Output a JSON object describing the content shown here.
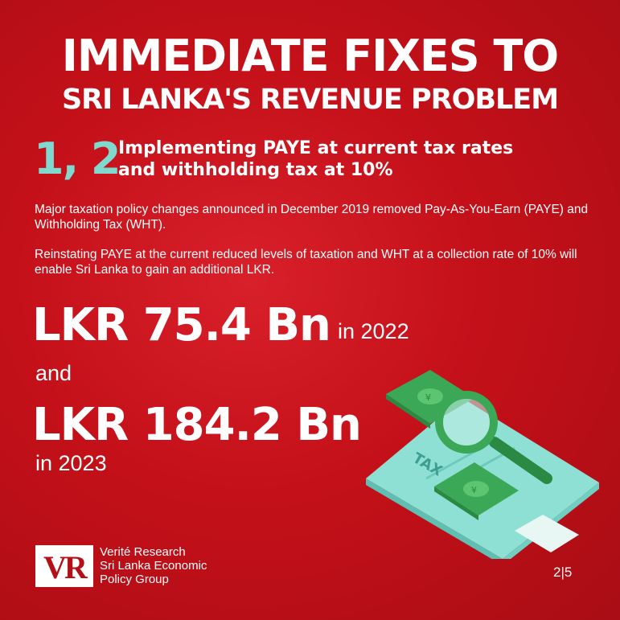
{
  "header": {
    "title_line1": "IMMEDIATE FIXES TO",
    "title_line2": "SRI LANKA'S REVENUE PROBLEM"
  },
  "section": {
    "number": "1, 2",
    "subtitle_line1": "Implementing PAYE at current tax rates",
    "subtitle_line2": "and withholding tax at 10%"
  },
  "body": {
    "paragraph1": "Major taxation policy changes announced in December 2019 removed Pay-As-You-Earn (PAYE) and Withholding Tax (WHT).",
    "paragraph2": "Reinstating PAYE at the current reduced levels of taxation and WHT at a collection rate of 10% will enable Sri Lanka to gain an additional LKR."
  },
  "figures": {
    "amount1": "LKR 75.4 Bn",
    "year1": "in 2022",
    "conjunction": "and",
    "amount2": "LKR 184.2 Bn",
    "year2": "in 2023"
  },
  "illustration": {
    "document_label": "TAX",
    "note_symbol": "¥"
  },
  "footer": {
    "logo_letters": "VR",
    "org_line1": "Verité Research",
    "org_line2": "Sri Lanka Economic",
    "org_line3": "Policy Group",
    "page_indicator": "2|5"
  },
  "colors": {
    "background": "#c41019",
    "accent": "#7fd9cf",
    "money_green": "#3aa856"
  }
}
